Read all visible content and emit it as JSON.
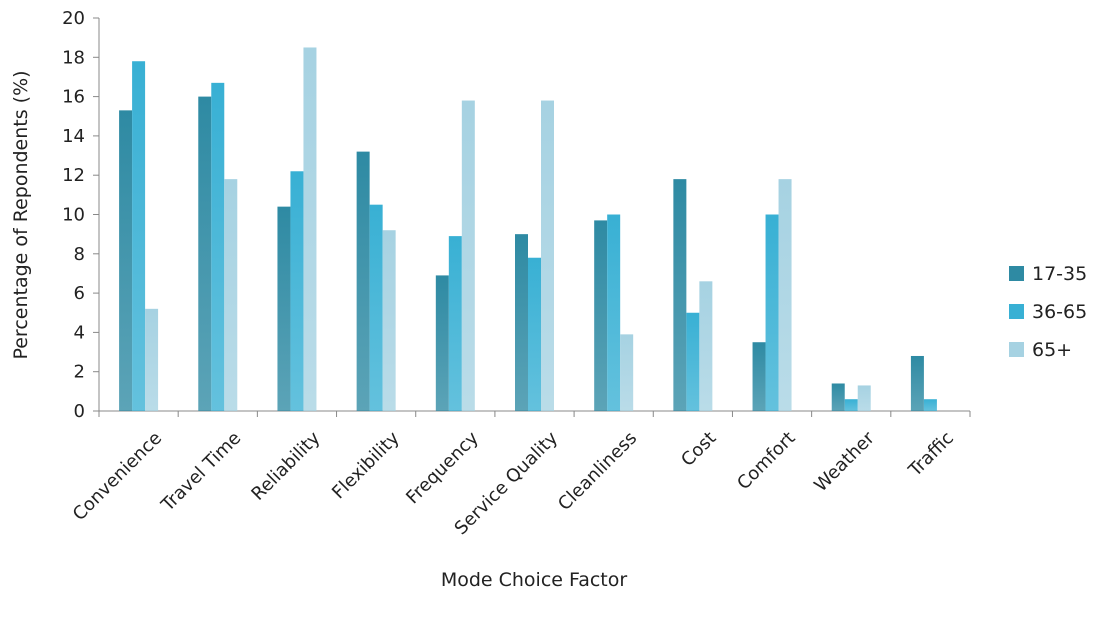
{
  "chart_data": {
    "type": "bar",
    "title": "",
    "xlabel": "Mode Choice Factor",
    "ylabel": "Percentage of Repondents (%)",
    "ylim": [
      0,
      20
    ],
    "yticks": [
      0,
      2,
      4,
      6,
      8,
      10,
      12,
      14,
      16,
      18,
      20
    ],
    "grid": false,
    "legend_position": "right",
    "categories": [
      "Convenience",
      "Travel Time",
      "Reliability",
      "Flexibility",
      "Frequency",
      "Service Quality",
      "Cleanliness",
      "Cost",
      "Comfort",
      "Weather",
      "Traffic"
    ],
    "series": [
      {
        "name": "17-35",
        "color": "#2e8aa3",
        "values": [
          15.3,
          16.0,
          10.4,
          13.2,
          6.9,
          9.0,
          9.7,
          11.8,
          3.5,
          1.4,
          2.8
        ]
      },
      {
        "name": "36-65",
        "color": "#38b0d4",
        "values": [
          17.8,
          16.7,
          12.2,
          10.5,
          8.9,
          7.8,
          10.0,
          5.0,
          10.0,
          0.6,
          0.6
        ]
      },
      {
        "name": "65+",
        "color": "#a6d2e2",
        "values": [
          5.2,
          11.8,
          18.5,
          9.2,
          15.8,
          15.8,
          3.9,
          6.6,
          11.8,
          1.3,
          0.0
        ]
      }
    ]
  }
}
